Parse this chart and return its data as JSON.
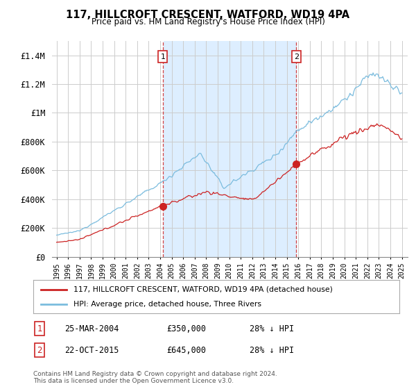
{
  "title": "117, HILLCROFT CRESCENT, WATFORD, WD19 4PA",
  "subtitle": "Price paid vs. HM Land Registry's House Price Index (HPI)",
  "hpi_color": "#7bbcde",
  "price_color": "#cc2222",
  "shade_color": "#ddeeff",
  "transaction1_date": "25-MAR-2004",
  "transaction1_price": 350000,
  "transaction1_hpi": "28% ↓ HPI",
  "transaction2_date": "22-OCT-2015",
  "transaction2_price": 645000,
  "transaction2_hpi": "28% ↓ HPI",
  "legend_label1": "117, HILLCROFT CRESCENT, WATFORD, WD19 4PA (detached house)",
  "legend_label2": "HPI: Average price, detached house, Three Rivers",
  "footnote": "Contains HM Land Registry data © Crown copyright and database right 2024.\nThis data is licensed under the Open Government Licence v3.0.",
  "background_color": "#ffffff",
  "grid_color": "#cccccc",
  "sale1_year": 2004.23,
  "sale1_price": 350000,
  "sale2_year": 2015.82,
  "sale2_price": 645000,
  "ylim_max": 1500000,
  "xlim_min": 1994.6,
  "xlim_max": 2025.5
}
